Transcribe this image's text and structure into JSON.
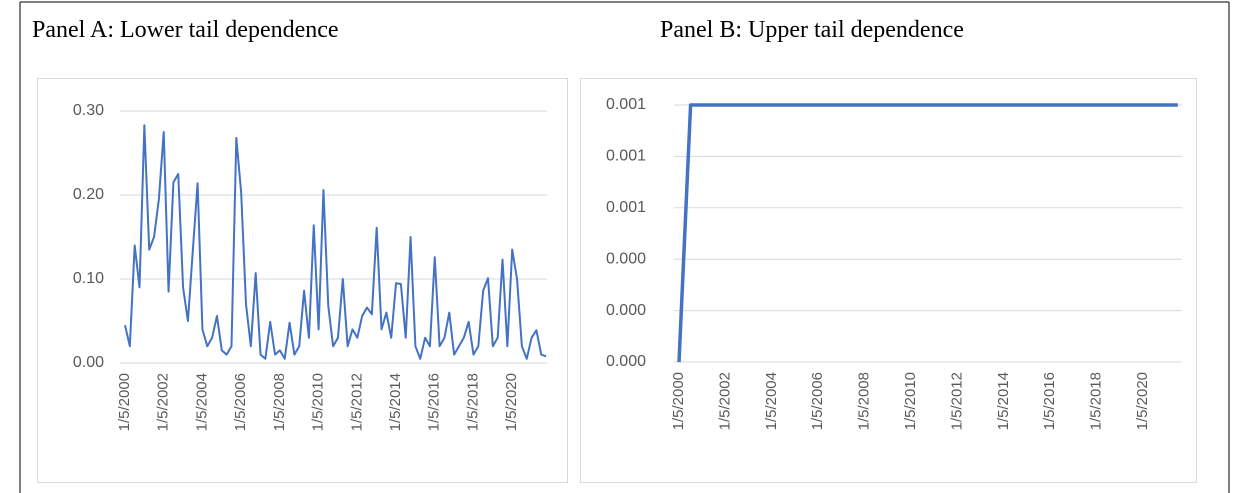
{
  "chart_data": [
    {
      "type": "line",
      "title": "Panel A: Lower tail dependence",
      "categories": [
        "1/5/2000",
        null,
        null,
        null,
        null,
        null,
        null,
        null,
        "1/5/2002",
        null,
        null,
        null,
        null,
        null,
        null,
        null,
        "1/5/2004",
        null,
        null,
        null,
        null,
        null,
        null,
        null,
        "1/5/2006",
        null,
        null,
        null,
        null,
        null,
        null,
        null,
        "1/5/2008",
        null,
        null,
        null,
        null,
        null,
        null,
        null,
        "1/5/2010",
        null,
        null,
        null,
        null,
        null,
        null,
        null,
        "1/5/2012",
        null,
        null,
        null,
        null,
        null,
        null,
        null,
        "1/5/2014",
        null,
        null,
        null,
        null,
        null,
        null,
        null,
        "1/5/2016",
        null,
        null,
        null,
        null,
        null,
        null,
        null,
        "1/5/2018",
        null,
        null,
        null,
        null,
        null,
        null,
        null,
        "1/5/2020",
        null,
        null,
        null,
        null,
        null,
        null,
        null
      ],
      "values": [
        0.045,
        0.02,
        0.14,
        0.09,
        0.283,
        0.135,
        0.15,
        0.195,
        0.275,
        0.085,
        0.215,
        0.225,
        0.09,
        0.05,
        0.133,
        0.214,
        0.04,
        0.02,
        0.03,
        0.056,
        0.015,
        0.01,
        0.02,
        0.268,
        0.203,
        0.07,
        0.02,
        0.107,
        0.01,
        0.005,
        0.049,
        0.01,
        0.015,
        0.005,
        0.048,
        0.01,
        0.02,
        0.086,
        0.03,
        0.164,
        0.04,
        0.206,
        0.068,
        0.02,
        0.03,
        0.1,
        0.02,
        0.04,
        0.03,
        0.056,
        0.066,
        0.058,
        0.161,
        0.04,
        0.06,
        0.03,
        0.095,
        0.094,
        0.03,
        0.15,
        0.02,
        0.005,
        0.03,
        0.02,
        0.126,
        0.02,
        0.03,
        0.06,
        0.01,
        0.02,
        0.03,
        0.049,
        0.01,
        0.02,
        0.086,
        0.101,
        0.02,
        0.03,
        0.123,
        0.02,
        0.135,
        0.1,
        0.02,
        0.005,
        0.03,
        0.039,
        0.01,
        0.008
      ],
      "color": "#4472c4",
      "ylim": [
        0,
        0.3
      ],
      "yticks": [
        {
          "value": 0,
          "label": "0.00"
        },
        {
          "value": 0.1,
          "label": "0.10"
        },
        {
          "value": 0.2,
          "label": "0.20"
        },
        {
          "value": 0.3,
          "label": "0.30"
        }
      ],
      "grid": true
    },
    {
      "type": "line",
      "title": "Panel B: Upper tail dependence",
      "categories": [
        "1/5/2000",
        null,
        null,
        null,
        "1/5/2002",
        null,
        null,
        null,
        "1/5/2004",
        null,
        null,
        null,
        "1/5/2006",
        null,
        null,
        null,
        "1/5/2008",
        null,
        null,
        null,
        "1/5/2010",
        null,
        null,
        null,
        "1/5/2012",
        null,
        null,
        null,
        "1/5/2014",
        null,
        null,
        null,
        "1/5/2016",
        null,
        null,
        null,
        "1/5/2018",
        null,
        null,
        null,
        "1/5/2020",
        null,
        null,
        null
      ],
      "values": [
        0,
        0.001,
        0.001,
        0.001,
        0.001,
        0.001,
        0.001,
        0.001,
        0.001,
        0.001,
        0.001,
        0.001,
        0.001,
        0.001,
        0.001,
        0.001,
        0.001,
        0.001,
        0.001,
        0.001,
        0.001,
        0.001,
        0.001,
        0.001,
        0.001,
        0.001,
        0.001,
        0.001,
        0.001,
        0.001,
        0.001,
        0.001,
        0.001,
        0.001,
        0.001,
        0.001,
        0.001,
        0.001,
        0.001,
        0.001,
        0.001,
        0.001,
        0.001,
        0.001
      ],
      "color": "#4472c4",
      "ylim": [
        0,
        0.001
      ],
      "yticks": [
        {
          "value": 0,
          "label": "0.000"
        },
        {
          "value": 0.0002,
          "label": "0.000"
        },
        {
          "value": 0.0004,
          "label": "0.000"
        },
        {
          "value": 0.0006,
          "label": "0.001"
        },
        {
          "value": 0.0008,
          "label": "0.001"
        },
        0.001
      ],
      "grid": true
    }
  ]
}
